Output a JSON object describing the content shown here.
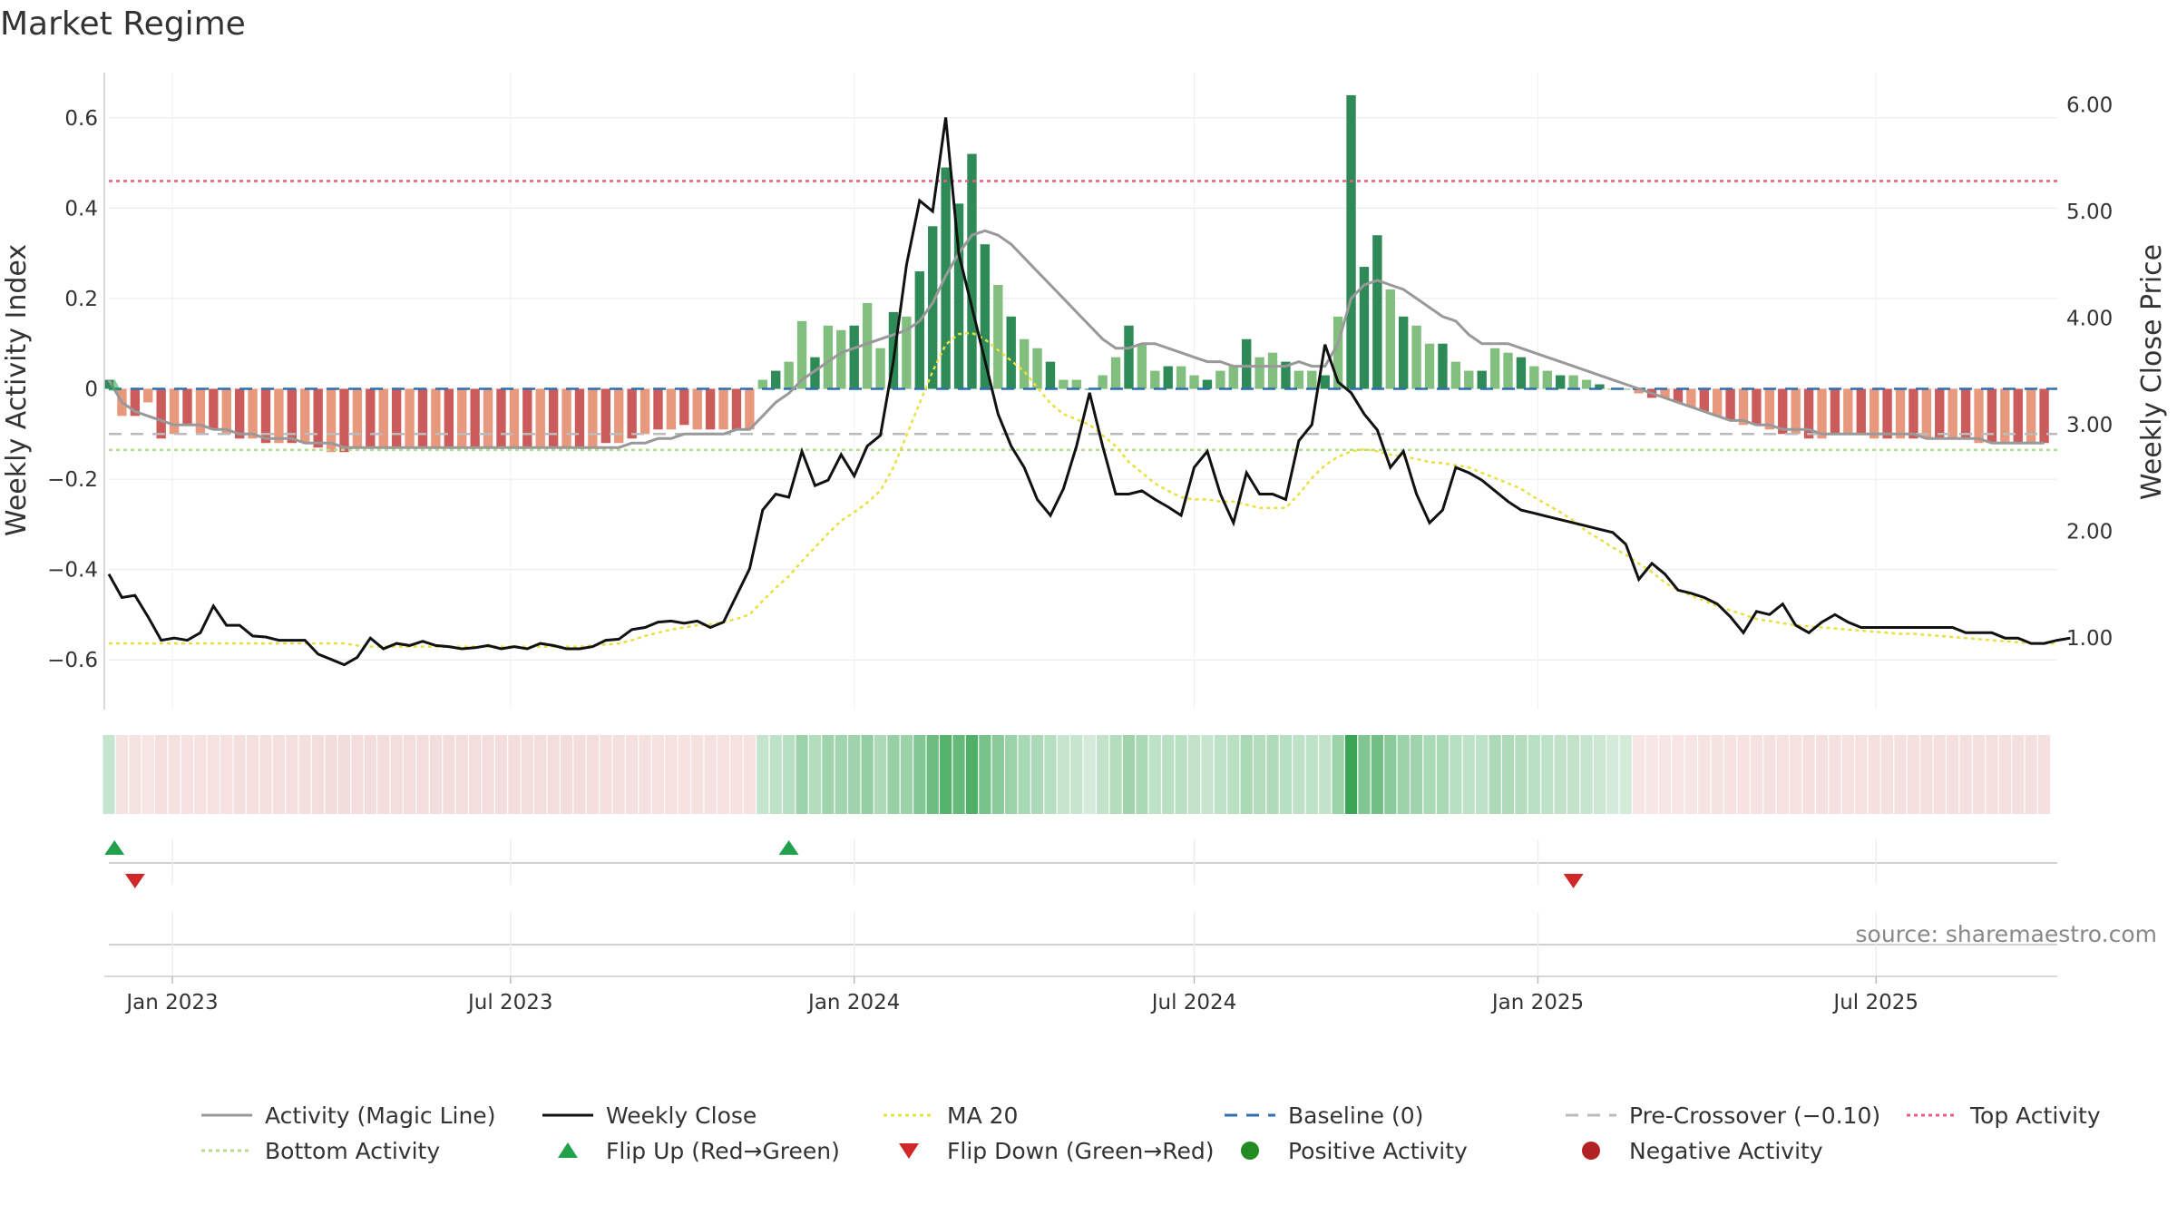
{
  "colors": {
    "bar_pos_strong": "#2e8b57",
    "bar_pos_weak": "#82bf7f",
    "bar_neg_strong": "#cc5c5c",
    "bar_neg_weak": "#e8987c",
    "activity_line": "#999999",
    "close_line": "#111111",
    "ma_line": "#e8e040",
    "baseline": "#2f6fb0",
    "pre_crossover": "#bbbbbb",
    "top_activity": "#e0607e",
    "bottom_activity": "#b8dd8a",
    "flip_up": "#22a04b",
    "flip_down": "#d02828",
    "positive_marker": "#228b22",
    "negative_marker": "#b22222"
  },
  "chart_data": {
    "type": "bar",
    "title": "Market Regime",
    "source": "source: sharemaestro.com",
    "y_left_label": "Weekly Activity Index",
    "y_right_label": "Weekly Close Price",
    "y_left_ticks": [
      "0.6",
      "0.4",
      "0.2",
      "0",
      "−0.2",
      "−0.4",
      "−0.6"
    ],
    "y_left_tick_values": [
      0.6,
      0.4,
      0.2,
      0,
      -0.2,
      -0.4,
      -0.6
    ],
    "y_right_ticks": [
      "6.00",
      "5.00",
      "4.00",
      "3.00",
      "2.00",
      "1.00"
    ],
    "y_right_tick_values": [
      6,
      5,
      4,
      3,
      2,
      1
    ],
    "y_left_range": [
      -0.71,
      0.7
    ],
    "y_right_range": [
      0.33,
      6.3
    ],
    "x_range": [
      "2022-11-28",
      "2025-10-06"
    ],
    "x_ticks": [
      "Jan 2023",
      "Jul 2023",
      "Jan 2024",
      "Jul 2024",
      "Jan 2025",
      "Jul 2025"
    ],
    "x_tick_dates": [
      "2023-01-01",
      "2023-07-01",
      "2024-01-01",
      "2024-07-01",
      "2025-01-01",
      "2025-07-01"
    ],
    "week_start": "2022-11-28",
    "activity_bars": [
      0.02,
      -0.06,
      -0.06,
      -0.03,
      -0.11,
      -0.1,
      -0.08,
      -0.1,
      -0.09,
      -0.1,
      -0.11,
      -0.11,
      -0.12,
      -0.12,
      -0.12,
      -0.12,
      -0.13,
      -0.14,
      -0.14,
      -0.13,
      -0.13,
      -0.13,
      -0.13,
      -0.13,
      -0.13,
      -0.13,
      -0.13,
      -0.13,
      -0.13,
      -0.13,
      -0.13,
      -0.13,
      -0.13,
      -0.13,
      -0.13,
      -0.13,
      -0.13,
      -0.13,
      -0.12,
      -0.12,
      -0.11,
      -0.1,
      -0.09,
      -0.09,
      -0.08,
      -0.09,
      -0.09,
      -0.09,
      -0.09,
      -0.09,
      0.02,
      0.04,
      0.06,
      0.15,
      0.07,
      0.14,
      0.13,
      0.14,
      0.19,
      0.09,
      0.17,
      0.16,
      0.26,
      0.36,
      0.49,
      0.41,
      0.52,
      0.32,
      0.23,
      0.16,
      0.11,
      0.09,
      0.06,
      0.02,
      0.02,
      0.0,
      0.03,
      0.07,
      0.14,
      0.1,
      0.04,
      0.05,
      0.05,
      0.03,
      0.02,
      0.04,
      0.05,
      0.11,
      0.07,
      0.08,
      0.06,
      0.04,
      0.04,
      0.03,
      0.16,
      0.65,
      0.27,
      0.34,
      0.22,
      0.16,
      0.14,
      0.1,
      0.1,
      0.06,
      0.04,
      0.04,
      0.09,
      0.08,
      0.07,
      0.05,
      0.04,
      0.03,
      0.03,
      0.02,
      0.01,
      0.0,
      0.0,
      -0.01,
      -0.02,
      -0.02,
      -0.03,
      -0.04,
      -0.05,
      -0.06,
      -0.07,
      -0.08,
      -0.08,
      -0.09,
      -0.1,
      -0.1,
      -0.11,
      -0.11,
      -0.1,
      -0.1,
      -0.1,
      -0.11,
      -0.11,
      -0.11,
      -0.11,
      -0.11,
      -0.11,
      -0.11,
      -0.11,
      -0.12,
      -0.12,
      -0.12,
      -0.12,
      -0.12,
      -0.12
    ],
    "activity_line": [
      0.02,
      -0.03,
      -0.05,
      -0.06,
      -0.07,
      -0.08,
      -0.08,
      -0.08,
      -0.09,
      -0.09,
      -0.1,
      -0.1,
      -0.11,
      -0.11,
      -0.11,
      -0.12,
      -0.12,
      -0.12,
      -0.13,
      -0.13,
      -0.13,
      -0.13,
      -0.13,
      -0.13,
      -0.13,
      -0.13,
      -0.13,
      -0.13,
      -0.13,
      -0.13,
      -0.13,
      -0.13,
      -0.13,
      -0.13,
      -0.13,
      -0.13,
      -0.13,
      -0.13,
      -0.13,
      -0.13,
      -0.12,
      -0.12,
      -0.11,
      -0.11,
      -0.1,
      -0.1,
      -0.1,
      -0.1,
      -0.09,
      -0.09,
      -0.06,
      -0.03,
      -0.01,
      0.02,
      0.04,
      0.06,
      0.08,
      0.09,
      0.1,
      0.11,
      0.12,
      0.13,
      0.15,
      0.19,
      0.25,
      0.3,
      0.34,
      0.35,
      0.34,
      0.32,
      0.29,
      0.26,
      0.23,
      0.2,
      0.17,
      0.14,
      0.11,
      0.09,
      0.09,
      0.1,
      0.1,
      0.09,
      0.08,
      0.07,
      0.06,
      0.06,
      0.05,
      0.05,
      0.05,
      0.05,
      0.05,
      0.06,
      0.05,
      0.05,
      0.1,
      0.2,
      0.23,
      0.24,
      0.23,
      0.22,
      0.2,
      0.18,
      0.16,
      0.15,
      0.12,
      0.1,
      0.1,
      0.1,
      0.09,
      0.08,
      0.07,
      0.06,
      0.05,
      0.04,
      0.03,
      0.02,
      0.01,
      0.0,
      -0.01,
      -0.02,
      -0.03,
      -0.04,
      -0.05,
      -0.06,
      -0.07,
      -0.07,
      -0.08,
      -0.08,
      -0.09,
      -0.09,
      -0.09,
      -0.1,
      -0.1,
      -0.1,
      -0.1,
      -0.1,
      -0.1,
      -0.1,
      -0.1,
      -0.11,
      -0.11,
      -0.11,
      -0.11,
      -0.11,
      -0.12,
      -0.12,
      -0.12,
      -0.12,
      -0.12
    ],
    "weekly_close": [
      1.6,
      1.38,
      1.4,
      1.2,
      0.98,
      1.0,
      0.98,
      1.05,
      1.3,
      1.12,
      1.12,
      1.02,
      1.01,
      0.98,
      0.98,
      0.98,
      0.85,
      0.8,
      0.75,
      0.82,
      1.0,
      0.9,
      0.95,
      0.93,
      0.97,
      0.93,
      0.92,
      0.9,
      0.91,
      0.93,
      0.9,
      0.92,
      0.9,
      0.95,
      0.93,
      0.9,
      0.9,
      0.92,
      0.98,
      0.99,
      1.08,
      1.1,
      1.15,
      1.16,
      1.14,
      1.16,
      1.1,
      1.15,
      1.4,
      1.65,
      2.2,
      2.35,
      2.32,
      2.75,
      2.43,
      2.48,
      2.72,
      2.52,
      2.8,
      2.9,
      3.6,
      4.5,
      5.1,
      5.0,
      5.88,
      4.6,
      4.1,
      3.6,
      3.1,
      2.8,
      2.6,
      2.3,
      2.15,
      2.4,
      2.8,
      3.3,
      2.8,
      2.35,
      2.35,
      2.38,
      2.3,
      2.23,
      2.15,
      2.6,
      2.75,
      2.35,
      2.08,
      2.55,
      2.35,
      2.35,
      2.3,
      2.85,
      3.0,
      3.75,
      3.4,
      3.3,
      3.1,
      2.95,
      2.6,
      2.75,
      2.35,
      2.08,
      2.2,
      2.6,
      2.55,
      2.48,
      2.38,
      2.28,
      2.2,
      2.17,
      2.14,
      2.11,
      2.08,
      2.05,
      2.02,
      1.99,
      1.88,
      1.55,
      1.7,
      1.6,
      1.45,
      1.42,
      1.38,
      1.32,
      1.2,
      1.05,
      1.25,
      1.22,
      1.32,
      1.12,
      1.05,
      1.15,
      1.22,
      1.15,
      1.1,
      1.1,
      1.1,
      1.1,
      1.1,
      1.1,
      1.1,
      1.1,
      1.05,
      1.05,
      1.05,
      1.0,
      1.0,
      0.95,
      0.95,
      0.98,
      1.0
    ],
    "ma20": [
      0.95,
      0.95,
      0.95,
      0.95,
      0.95,
      0.95,
      0.95,
      0.95,
      0.95,
      0.95,
      0.95,
      0.95,
      0.95,
      0.95,
      0.95,
      0.95,
      0.95,
      0.95,
      0.95,
      0.93,
      0.92,
      0.92,
      0.92,
      0.92,
      0.92,
      0.92,
      0.92,
      0.92,
      0.92,
      0.92,
      0.92,
      0.92,
      0.92,
      0.92,
      0.92,
      0.92,
      0.92,
      0.93,
      0.94,
      0.95,
      0.98,
      1.02,
      1.05,
      1.08,
      1.1,
      1.12,
      1.13,
      1.15,
      1.18,
      1.22,
      1.35,
      1.47,
      1.58,
      1.72,
      1.85,
      1.98,
      2.1,
      2.18,
      2.27,
      2.38,
      2.6,
      2.9,
      3.2,
      3.5,
      3.75,
      3.85,
      3.86,
      3.8,
      3.7,
      3.6,
      3.5,
      3.35,
      3.2,
      3.1,
      3.05,
      3.0,
      2.9,
      2.8,
      2.65,
      2.55,
      2.45,
      2.38,
      2.32,
      2.3,
      2.3,
      2.28,
      2.28,
      2.25,
      2.22,
      2.22,
      2.22,
      2.35,
      2.5,
      2.62,
      2.7,
      2.75,
      2.77,
      2.75,
      2.72,
      2.7,
      2.68,
      2.65,
      2.64,
      2.62,
      2.6,
      2.55,
      2.5,
      2.45,
      2.4,
      2.32,
      2.25,
      2.18,
      2.1,
      2.0,
      1.93,
      1.85,
      1.78,
      1.7,
      1.62,
      1.52,
      1.45,
      1.4,
      1.35,
      1.3,
      1.26,
      1.22,
      1.18,
      1.16,
      1.14,
      1.12,
      1.11,
      1.1,
      1.09,
      1.08,
      1.07,
      1.06,
      1.05,
      1.04,
      1.04,
      1.03,
      1.02,
      1.01,
      1.0,
      0.99,
      0.98,
      0.97,
      0.96,
      0.95,
      0.95,
      0.95
    ],
    "baseline": 0,
    "pre_crossover": -0.1,
    "top_activity": 0.46,
    "bottom_activity": -0.135,
    "flip_up_dates": [
      "2022-12-01",
      "2023-11-27"
    ],
    "flip_down_dates": [
      "2022-12-12",
      "2025-01-20"
    ],
    "legend": [
      {
        "label": "Activity (Magic Line)",
        "kind": "line",
        "color": "#999999",
        "dash": ""
      },
      {
        "label": "Weekly Close",
        "kind": "line",
        "color": "#111111",
        "dash": ""
      },
      {
        "label": "MA 20",
        "kind": "line",
        "color": "#e8e040",
        "dash": "4,4"
      },
      {
        "label": "Baseline (0)",
        "kind": "line",
        "color": "#2f6fb0",
        "dash": "14,10"
      },
      {
        "label": "Pre-Crossover (−0.10)",
        "kind": "line",
        "color": "#bbbbbb",
        "dash": "14,10"
      },
      {
        "label": "Top Activity",
        "kind": "line",
        "color": "#e0607e",
        "dash": "4,4"
      },
      {
        "label": "Bottom Activity",
        "kind": "line",
        "color": "#b8dd8a",
        "dash": "4,4"
      },
      {
        "label": "Flip Up (Red→Green)",
        "kind": "tri-up",
        "color": "#22a04b"
      },
      {
        "label": "Flip Down (Green→Red)",
        "kind": "tri-down",
        "color": "#d02828"
      },
      {
        "label": "Positive Activity",
        "kind": "dot",
        "color": "#228b22"
      },
      {
        "label": "Negative Activity",
        "kind": "dot",
        "color": "#b22222"
      }
    ]
  }
}
